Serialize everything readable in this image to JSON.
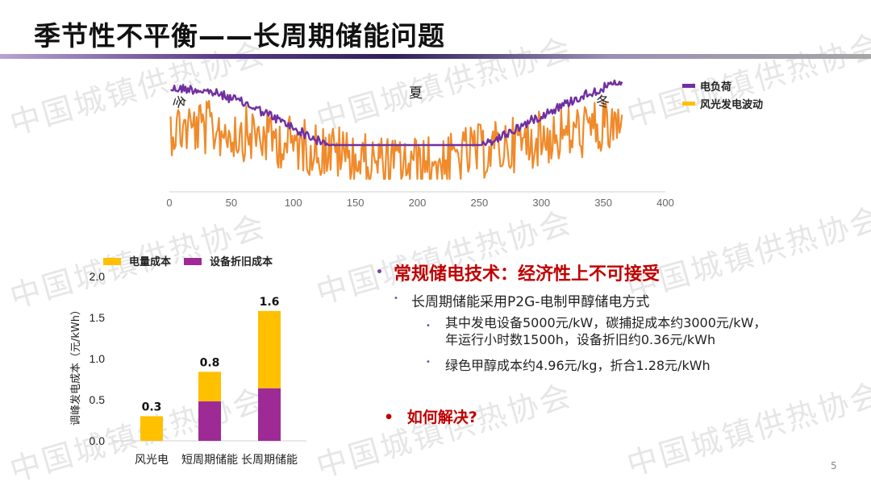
{
  "slide": {
    "title": "季节性不平衡——长周期储能问题",
    "page_number": "5",
    "watermark": "中国城镇供热协会"
  },
  "line_chart": {
    "chart_data": {
      "type": "line",
      "x_ticks": [
        0,
        50,
        100,
        150,
        200,
        250,
        300,
        350,
        400
      ],
      "xlim": [
        0,
        400
      ],
      "series": [
        {
          "name": "电负荷",
          "color": "#7030a0"
        },
        {
          "name": "风光发电波动",
          "color": "#f0a030"
        }
      ],
      "annotations": [
        "冬",
        "夏",
        "冬"
      ]
    },
    "legend_swatch_colors": [
      "#7030a0",
      "#ffc000"
    ]
  },
  "bar_chart": {
    "chart_data": {
      "type": "bar",
      "stacked": true,
      "categories": [
        "风光电",
        "短周期储能",
        "长周期储能"
      ],
      "series": [
        {
          "name": "电量成本",
          "color": "#ffc000",
          "values": [
            0.3,
            0.36,
            0.94
          ]
        },
        {
          "name": "设备折旧成本",
          "color": "#9e2a96",
          "values": [
            0,
            0.48,
            0.64
          ]
        }
      ],
      "data_labels": [
        "0.3",
        "0.8",
        "1.6"
      ],
      "y_ticks": [
        "0.0",
        "0.5",
        "1.0",
        "1.5",
        "2.0"
      ],
      "ylim": [
        0,
        2.0
      ],
      "ylabel": "调峰发电成本（元/kWh）"
    }
  },
  "text": {
    "bullet1": "常规储电技术：经济性上不可接受",
    "bullet2": "长周期储能采用P2G-电制甲醇储电方式",
    "bullet3a": "其中发电设备5000元/kW，碳捕捉成本约3000元/kW，",
    "bullet3b": "年运行小时数1500h，设备折旧约0.36元/kWh",
    "bullet4": "绿色甲醇成本约4.96元/kg，折合1.28元/kWh",
    "bullet5": "如何解决?"
  }
}
